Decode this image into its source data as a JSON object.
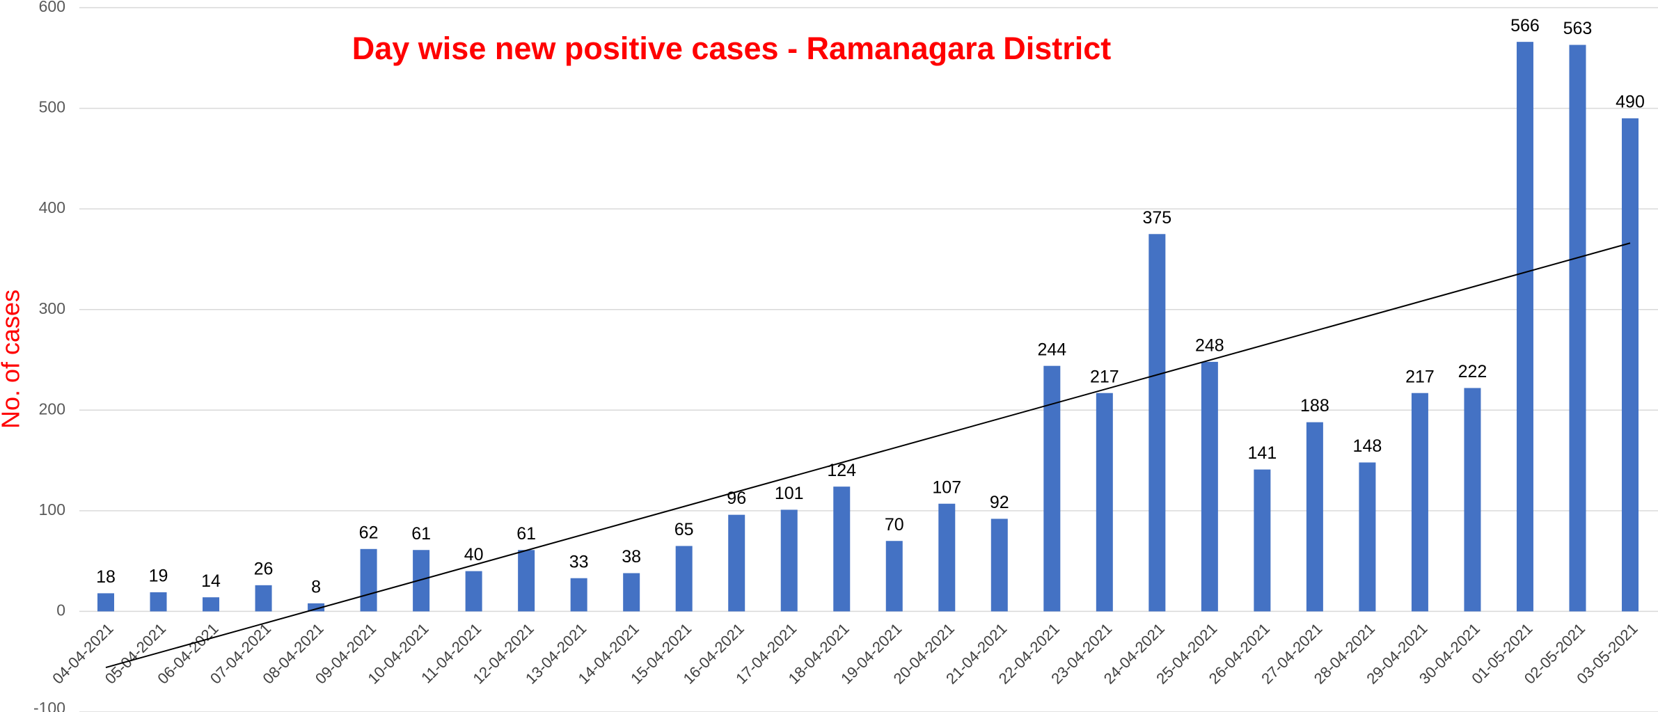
{
  "chart_data": {
    "type": "bar",
    "title": "Day wise new positive cases - Ramanagara District",
    "y_label": "No. of cases",
    "categories": [
      "04-04-2021",
      "05-04-2021",
      "06-04-2021",
      "07-04-2021",
      "08-04-2021",
      "09-04-2021",
      "10-04-2021",
      "11-04-2021",
      "12-04-2021",
      "13-04-2021",
      "14-04-2021",
      "15-04-2021",
      "16-04-2021",
      "17-04-2021",
      "18-04-2021",
      "19-04-2021",
      "20-04-2021",
      "21-04-2021",
      "22-04-2021",
      "23-04-2021",
      "24-04-2021",
      "25-04-2021",
      "26-04-2021",
      "27-04-2021",
      "28-04-2021",
      "29-04-2021",
      "30-04-2021",
      "01-05-2021",
      "02-05-2021",
      "03-05-2021"
    ],
    "values": [
      18,
      19,
      14,
      26,
      8,
      62,
      61,
      40,
      61,
      33,
      38,
      65,
      96,
      101,
      124,
      70,
      107,
      92,
      244,
      217,
      375,
      248,
      141,
      188,
      148,
      217,
      222,
      566,
      563,
      490
    ],
    "color": "#4472c4",
    "trendline": "linear",
    "trendline_color": "#000000",
    "ylim": [
      -100,
      600
    ],
    "yticks": [
      -100,
      0,
      100,
      200,
      300,
      400,
      500,
      600
    ],
    "grid": true
  }
}
